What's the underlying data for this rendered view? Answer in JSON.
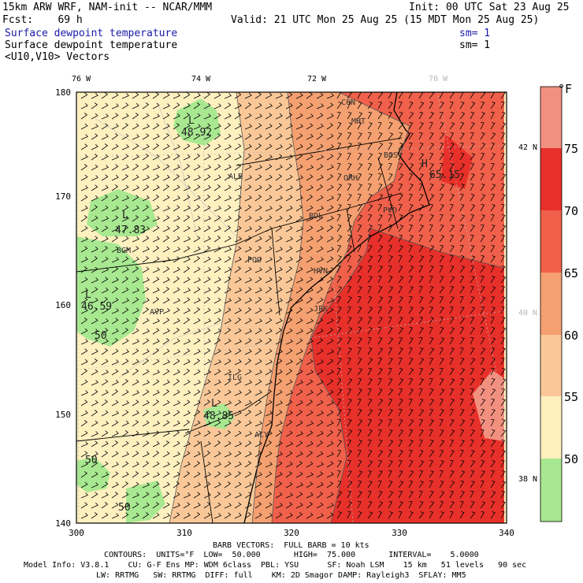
{
  "header": {
    "line1_left": "15km ARW WRF, NAM-init -- NCAR/MMM",
    "line1_right": "Init: 00 UTC Sat 23 Aug 25",
    "line2_left": "Fcst:    69 h",
    "line2_right": "Valid: 21 UTC Mon 25 Aug 25 (15 MDT Mon 25 Aug 25)",
    "field1": "Surface dewpoint temperature",
    "field1_sm": "sm= 1",
    "field2": "Surface dewpoint temperature",
    "field2_sm": "sm= 1",
    "field3": "<U10,V10> Vectors"
  },
  "axes": {
    "top_lon": [
      "76 W",
      "74 W",
      "72 W",
      "70 W"
    ],
    "left_ticks": [
      "180",
      "170",
      "160",
      "150",
      "140"
    ],
    "bottom_ticks": [
      "300",
      "310",
      "320",
      "330",
      "340"
    ],
    "right_lat": [
      "42 N",
      "40 N",
      "38 N"
    ]
  },
  "colorbar": {
    "unit": "°F",
    "labels": [
      "75",
      "70",
      "65",
      "60",
      "55",
      "50"
    ],
    "colors": [
      "#f29080",
      "#e8302a",
      "#f0604a",
      "#f5a070",
      "#fac898",
      "#fff0c0",
      "#f8f8d0",
      "#a8e890"
    ]
  },
  "stations": [
    "CON",
    "MHT",
    "BOS",
    "ALB",
    "ORH",
    "BDL",
    "PVD",
    "BGM",
    "POU",
    "HVN",
    "AVP",
    "JFK",
    "ACY",
    "ILG"
  ],
  "extrema": [
    "48.92",
    "47.83",
    "46.59",
    "48.85",
    "65.15"
  ],
  "extrema_letters": [
    "L",
    "L",
    "L",
    "L",
    "H"
  ],
  "contour_labels": [
    "50",
    "50",
    "50"
  ],
  "footer": {
    "barb": "BARB VECTORS:  FULL BARB = 10 kts",
    "contours": "CONTOURS:  UNITS=°F  LOW=  50.000       HIGH=  75.000       INTERVAL=    5.0000",
    "model1": "Model Info: V3.8.1    CU: G-F Ens MP: WDM 6class  PBL: YSU      SF: Noah LSM    15 km   51 levels   90 sec",
    "model2": "LW: RRTMG   SW: RRTMG  DIFF: full    KM: 2D Smagor DAMP: Rayleigh3  SFLAY: MM5"
  }
}
